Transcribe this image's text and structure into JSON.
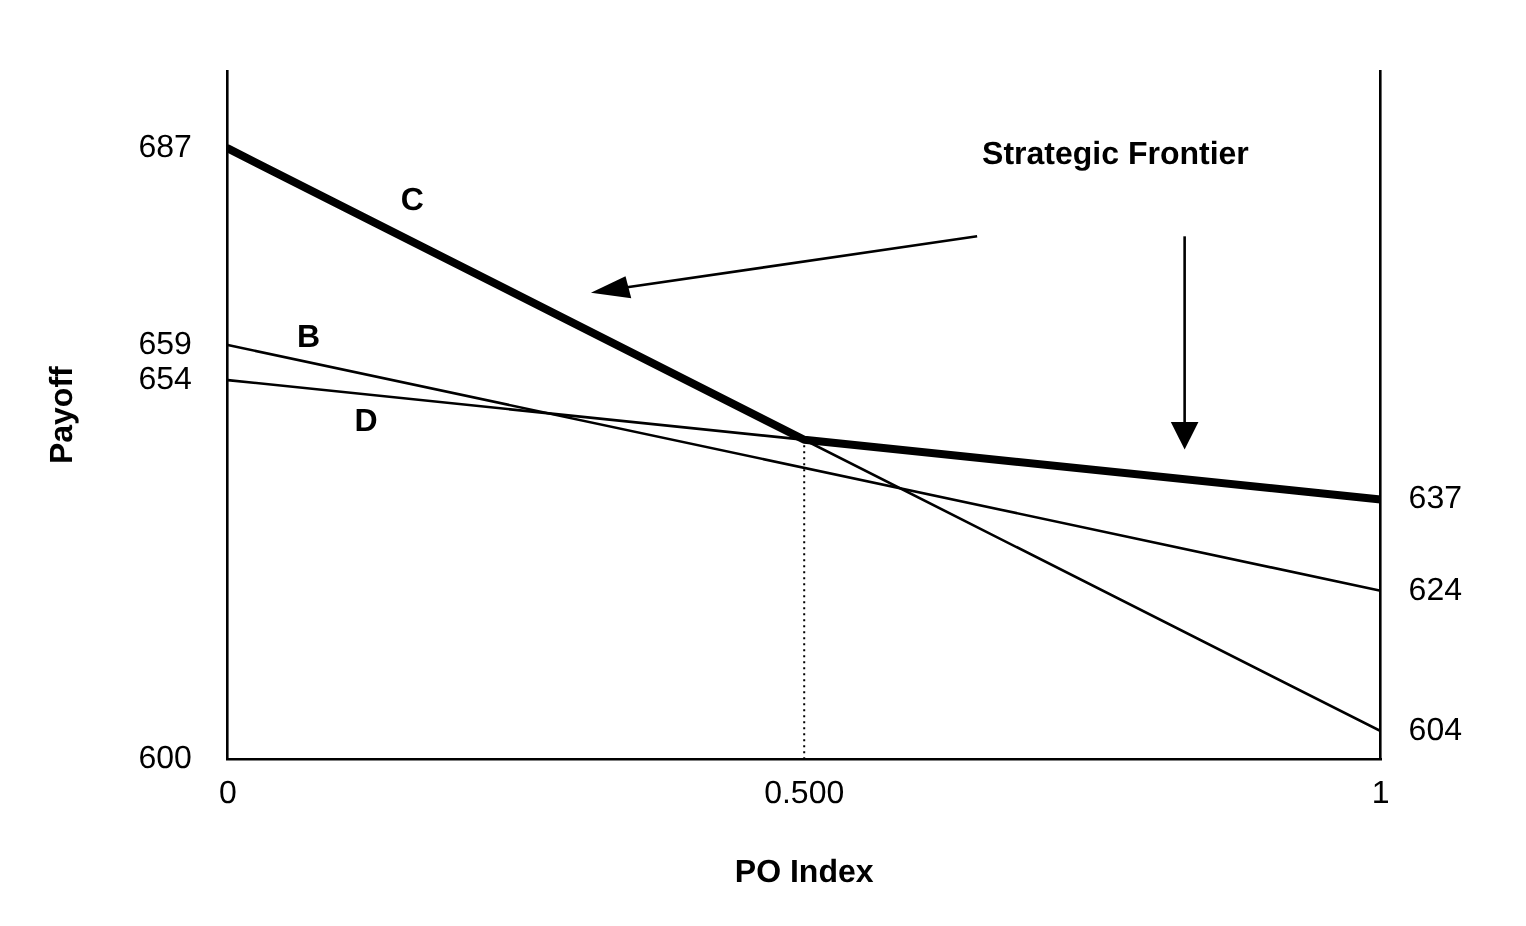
{
  "chart_data": {
    "type": "line",
    "xlabel": "PO Index",
    "ylabel": "Payoff",
    "x": [
      0,
      1
    ],
    "series": [
      {
        "name": "C",
        "color": "#000000",
        "values": [
          687,
          604
        ]
      },
      {
        "name": "B",
        "color": "#000000",
        "values": [
          659,
          624
        ]
      },
      {
        "name": "D",
        "color": "#000000",
        "values": [
          654,
          637
        ]
      },
      {
        "color": "#000000",
        "x": [
          0,
          0.5,
          1
        ],
        "values": [
          687,
          645.5,
          637
        ]
      }
    ],
    "xlim": [
      0,
      1
    ],
    "xticks": [
      0,
      {
        "value": 0.5,
        "label": "0.500"
      },
      1
    ],
    "ylim": [
      600,
      698
    ],
    "yticks": [
      600,
      654,
      659,
      687
    ],
    "y2lim": [
      600,
      698
    ],
    "y2ticks": [
      604,
      624,
      637
    ],
    "ref_lines": [
      {
        "axis": "x",
        "value": 0.5,
        "line_style": "dotted",
        "color": "#000000"
      }
    ],
    "annotations": [
      "Strategic Frontier"
    ],
    "grid": false,
    "legend": false,
    "marker": "none",
    "line_style": "solid"
  }
}
